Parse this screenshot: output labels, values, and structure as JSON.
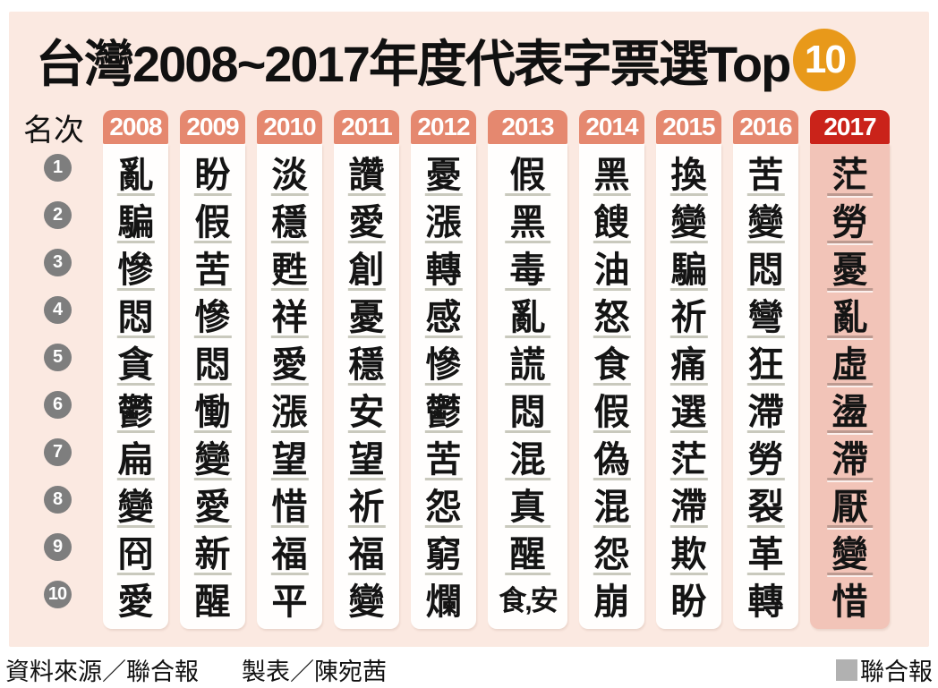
{
  "title": {
    "text": "台灣2008~2017年度代表字票選Top",
    "badge": "10"
  },
  "table": {
    "rank_header": "名次",
    "ranks": [
      "1",
      "2",
      "3",
      "4",
      "5",
      "6",
      "7",
      "8",
      "9",
      "10"
    ]
  },
  "footer": {
    "source": "資料來源／聯合報",
    "credit": "製表／陳宛茜",
    "brand": "聯合報"
  },
  "colors": {
    "panel_background": "#fbe9e1",
    "year_tab": "#e5886f",
    "year_2017_tab": "#ca231a",
    "year_2017_body": "#f2c4b8",
    "column_body": "#fffefd",
    "separator": "#c9c9bd",
    "rank_badge": "#7e7e7e",
    "top10_badge": "#e8991a",
    "brand_square": "#b1b1b1"
  },
  "chart_data": {
    "type": "table",
    "title": "台灣2008~2017年度代表字票選Top 10",
    "rank_label": "名次",
    "ranks": [
      1,
      2,
      3,
      4,
      5,
      6,
      7,
      8,
      9,
      10
    ],
    "series": [
      {
        "year": "2008",
        "highlight": false,
        "values": [
          "亂",
          "騙",
          "慘",
          "悶",
          "貪",
          "鬱",
          "扁",
          "變",
          "冏",
          "愛"
        ]
      },
      {
        "year": "2009",
        "highlight": false,
        "values": [
          "盼",
          "假",
          "苦",
          "慘",
          "悶",
          "慟",
          "變",
          "愛",
          "新",
          "醒"
        ]
      },
      {
        "year": "2010",
        "highlight": false,
        "values": [
          "淡",
          "穩",
          "甦",
          "祥",
          "愛",
          "漲",
          "望",
          "惜",
          "福",
          "平"
        ]
      },
      {
        "year": "2011",
        "highlight": false,
        "values": [
          "讚",
          "愛",
          "創",
          "憂",
          "穩",
          "安",
          "望",
          "祈",
          "福",
          "變"
        ]
      },
      {
        "year": "2012",
        "highlight": false,
        "values": [
          "憂",
          "漲",
          "轉",
          "感",
          "慘",
          "鬱",
          "苦",
          "怨",
          "窮",
          "爛"
        ]
      },
      {
        "year": "2013",
        "highlight": false,
        "values": [
          "假",
          "黑",
          "毒",
          "亂",
          "謊",
          "悶",
          "混",
          "真",
          "醒",
          "食,安"
        ]
      },
      {
        "year": "2014",
        "highlight": false,
        "values": [
          "黑",
          "餿",
          "油",
          "怒",
          "食",
          "假",
          "偽",
          "混",
          "怨",
          "崩"
        ]
      },
      {
        "year": "2015",
        "highlight": false,
        "values": [
          "換",
          "變",
          "騙",
          "祈",
          "痛",
          "選",
          "茫",
          "滯",
          "欺",
          "盼"
        ]
      },
      {
        "year": "2016",
        "highlight": false,
        "values": [
          "苦",
          "變",
          "悶",
          "彎",
          "狂",
          "滯",
          "勞",
          "裂",
          "革",
          "轉"
        ]
      },
      {
        "year": "2017",
        "highlight": true,
        "values": [
          "茫",
          "勞",
          "憂",
          "亂",
          "虛",
          "盪",
          "滯",
          "厭",
          "變",
          "惜"
        ]
      }
    ]
  }
}
